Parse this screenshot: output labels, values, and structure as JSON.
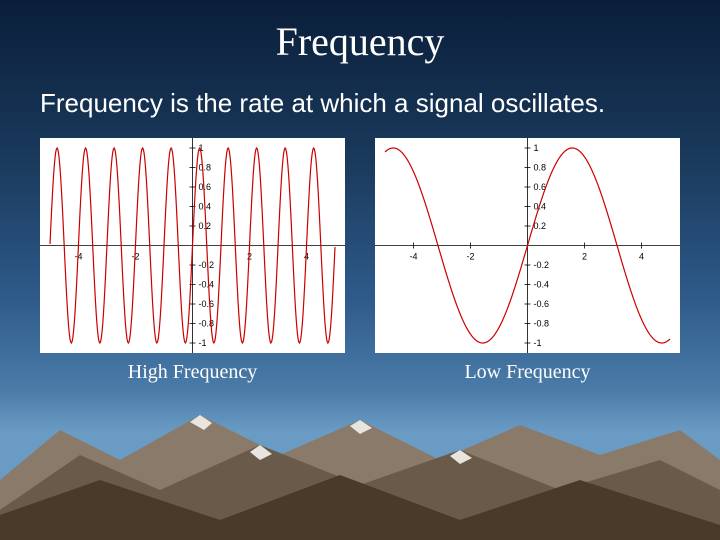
{
  "slide": {
    "title": "Frequency",
    "body_text": "Frequency is the rate at which a signal oscillates.",
    "title_fontsize": 40,
    "body_fontsize": 26,
    "text_color": "#ffffff",
    "background_gradient": [
      "#0a1e3a",
      "#1a3a5c",
      "#2e5a8a",
      "#4a7ba8",
      "#6a9bc4"
    ]
  },
  "mountains": {
    "far_color": "#8a7a6a",
    "mid_color": "#6a5a4a",
    "near_color": "#4a3a2a",
    "snow_color": "#e8e4e0"
  },
  "chart_high": {
    "type": "line",
    "caption": "High Frequency",
    "xlim": [
      -5,
      5
    ],
    "ylim": [
      -1,
      1
    ],
    "xtick_labels": [
      "-4",
      "-2",
      "2",
      "4"
    ],
    "xtick_positions": [
      -4,
      -2,
      2,
      4
    ],
    "ytick_labels": [
      "1",
      "0.8",
      "0.6",
      "0.4",
      "0.2",
      "-0.2",
      "-0.4",
      "-0.6",
      "-0.8",
      "-1"
    ],
    "ytick_positions": [
      1,
      0.8,
      0.6,
      0.4,
      0.2,
      -0.2,
      -0.4,
      -0.6,
      -0.8,
      -1
    ],
    "tick_fontsize": 9,
    "wave_color": "#cc0000",
    "axis_color": "#000000",
    "background_color": "#ffffff",
    "amplitude": 1.0,
    "angular_frequency": 6.28,
    "line_width": 1.2
  },
  "chart_low": {
    "type": "line",
    "caption": "Low Frequency",
    "xlim": [
      -5,
      5
    ],
    "ylim": [
      -1,
      1
    ],
    "xtick_labels": [
      "-4",
      "-2",
      "2",
      "4"
    ],
    "xtick_positions": [
      -4,
      -2,
      2,
      4
    ],
    "ytick_labels": [
      "1",
      "0.8",
      "0.6",
      "0.4",
      "0.2",
      "-0.2",
      "-0.4",
      "-0.6",
      "-0.8",
      "-1"
    ],
    "ytick_positions": [
      1,
      0.8,
      0.6,
      0.4,
      0.2,
      -0.2,
      -0.4,
      -0.6,
      -0.8,
      -1
    ],
    "tick_fontsize": 9,
    "wave_color": "#cc0000",
    "axis_color": "#000000",
    "background_color": "#ffffff",
    "amplitude": 1.0,
    "angular_frequency": 1.0,
    "line_width": 1.2
  }
}
